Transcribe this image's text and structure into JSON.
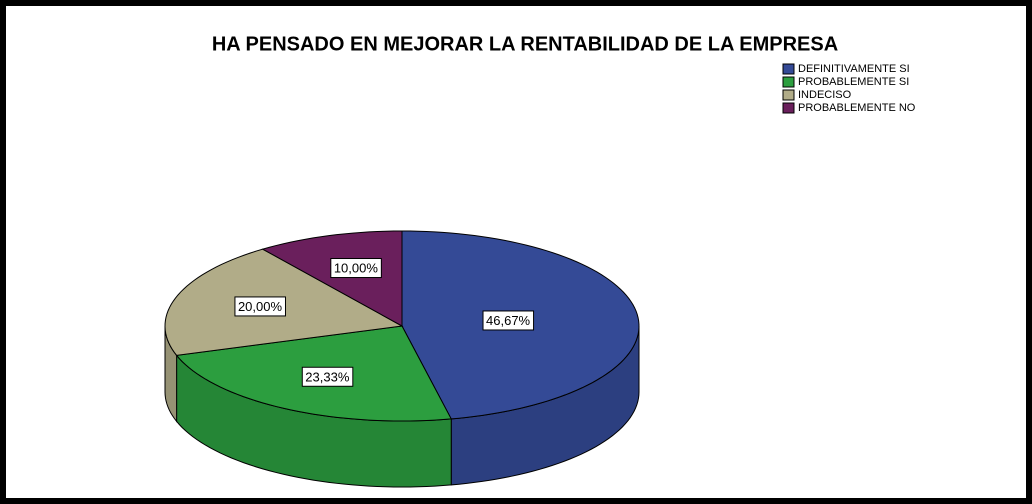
{
  "chart_data": {
    "type": "pie",
    "title": "HA PENSADO EN MEJORAR LA RENTABILIDAD DE LA EMPRESA",
    "categories": [
      "DEFINITIVAMENTE SI",
      "PROBABLEMENTE SI",
      "INDECISO",
      "PROBABLEMENTE NO"
    ],
    "values": [
      46.67,
      23.33,
      20,
      10
    ],
    "value_labels": [
      "46,67%",
      "23,33%",
      "20,00%",
      "10,00%"
    ],
    "colors": [
      "#344a96",
      "#2c9e3f",
      "#b1ac88",
      "#6a1f5c"
    ],
    "legend": "upper right"
  }
}
